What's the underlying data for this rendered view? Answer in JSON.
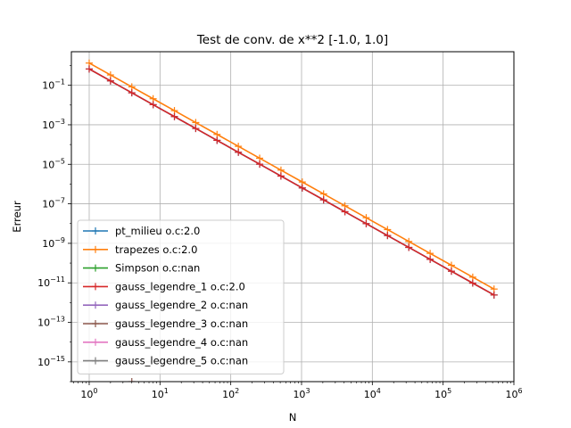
{
  "chart_data": {
    "type": "line",
    "title": "Test de conv. de x**2 [-1.0, 1.0]",
    "xlabel": "N",
    "ylabel": "Erreur",
    "xscale": "log",
    "yscale": "log",
    "xlim": [
      0.56,
      1000000
    ],
    "ylim": [
      1e-16,
      5
    ],
    "grid": true,
    "legend_position": "lower-left",
    "x_ticks": [
      {
        "base": "10",
        "exp": "0",
        "value": 1
      },
      {
        "base": "10",
        "exp": "1",
        "value": 10
      },
      {
        "base": "10",
        "exp": "2",
        "value": 100
      },
      {
        "base": "10",
        "exp": "3",
        "value": 1000
      },
      {
        "base": "10",
        "exp": "4",
        "value": 10000
      },
      {
        "base": "10",
        "exp": "5",
        "value": 100000
      },
      {
        "base": "10",
        "exp": "6",
        "value": 1000000
      }
    ],
    "y_ticks": [
      {
        "base": "10",
        "exp": "−15",
        "value": 1e-15
      },
      {
        "base": "10",
        "exp": "−13",
        "value": 1e-13
      },
      {
        "base": "10",
        "exp": "−11",
        "value": 1e-11
      },
      {
        "base": "10",
        "exp": "−9",
        "value": 1e-09
      },
      {
        "base": "10",
        "exp": "−7",
        "value": 1e-07
      },
      {
        "base": "10",
        "exp": "−5",
        "value": 1e-05
      },
      {
        "base": "10",
        "exp": "−3",
        "value": 0.001
      },
      {
        "base": "10",
        "exp": "−1",
        "value": 0.1
      }
    ],
    "series": [
      {
        "name": "pt_milieu o.c:2.0",
        "color": "#1f77b4",
        "x": [
          1,
          2,
          4,
          8,
          16,
          32,
          64,
          128,
          256,
          512,
          1024,
          2048,
          4096,
          8192,
          16384,
          32768,
          65536,
          131072,
          262144,
          524288
        ],
        "y": [
          0.667,
          0.1667,
          0.04167,
          0.01042,
          0.002604,
          0.000651,
          0.0001628,
          4.07e-05,
          1.017e-05,
          2.543e-06,
          6.358e-07,
          1.589e-07,
          3.974e-08,
          9.934e-09,
          2.484e-09,
          6.209e-10,
          1.552e-10,
          3.881e-11,
          9.702e-12,
          2.425e-12
        ]
      },
      {
        "name": "trapezes o.c:2.0",
        "color": "#ff7f0e",
        "x": [
          1,
          2,
          4,
          8,
          16,
          32,
          64,
          128,
          256,
          512,
          1024,
          2048,
          4096,
          8192,
          16384,
          32768,
          65536,
          131072,
          262144,
          524288
        ],
        "y": [
          1.333,
          0.3333,
          0.08333,
          0.02083,
          0.005208,
          0.001302,
          0.0003255,
          8.138e-05,
          2.035e-05,
          5.086e-06,
          1.272e-06,
          3.179e-07,
          7.947e-08,
          1.987e-08,
          4.967e-09,
          1.242e-09,
          3.104e-10,
          7.761e-11,
          1.94e-11,
          4.85e-12
        ]
      },
      {
        "name": "Simpson o.c:nan",
        "color": "#2ca02c",
        "x": [],
        "y": []
      },
      {
        "name": "gauss_legendre_1 o.c:2.0",
        "color": "#d62728",
        "x": [
          1,
          2,
          4,
          8,
          16,
          32,
          64,
          128,
          256,
          512,
          1024,
          2048,
          4096,
          8192,
          16384,
          32768,
          65536,
          131072,
          262144,
          524288
        ],
        "y": [
          0.667,
          0.1667,
          0.04167,
          0.01042,
          0.002604,
          0.000651,
          0.0001628,
          4.07e-05,
          1.017e-05,
          2.543e-06,
          6.358e-07,
          1.589e-07,
          3.974e-08,
          9.934e-09,
          2.484e-09,
          6.209e-10,
          1.552e-10,
          3.881e-11,
          9.702e-12,
          2.425e-12
        ]
      },
      {
        "name": "gauss_legendre_2 o.c:nan",
        "color": "#9467bd",
        "x": [],
        "y": []
      },
      {
        "name": "gauss_legendre_3 o.c:nan",
        "color": "#8c564b",
        "x": [
          4
        ],
        "y": [
          1e-16
        ]
      },
      {
        "name": "gauss_legendre_4 o.c:nan",
        "color": "#e377c2",
        "x": [],
        "y": []
      },
      {
        "name": "gauss_legendre_5 o.c:nan",
        "color": "#7f7f7f",
        "x": [],
        "y": []
      }
    ]
  }
}
